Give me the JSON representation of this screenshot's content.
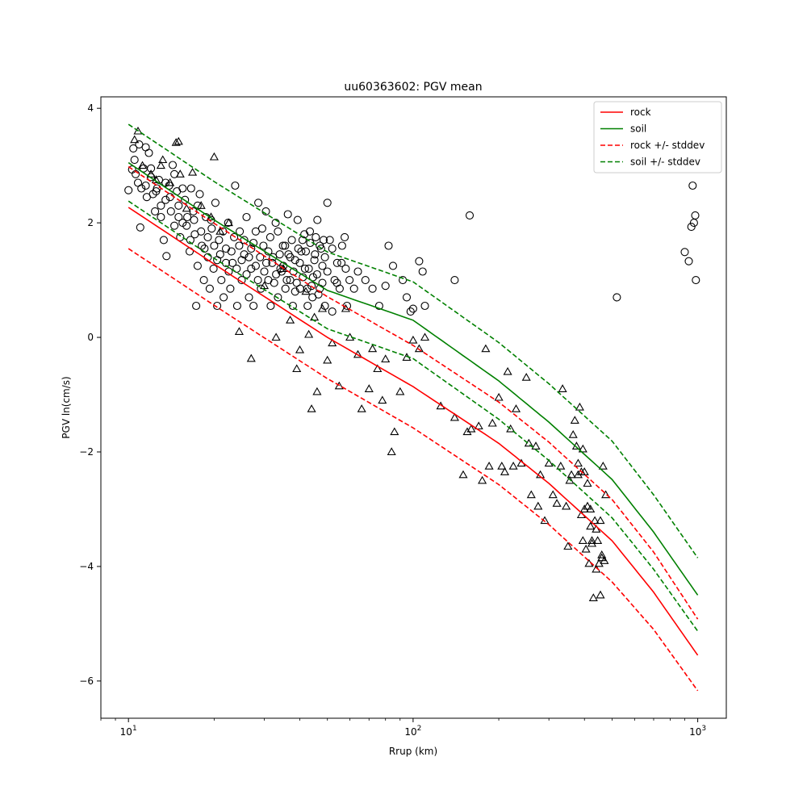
{
  "chart_data": {
    "type": "scatter",
    "title": "uu60363602: PGV mean",
    "xlabel": "Rrup (km)",
    "ylabel": "PGV ln(cm/s)",
    "xscale": "log",
    "xlim": [
      8.0,
      1260.0
    ],
    "ylim": [
      -6.65,
      4.2
    ],
    "grid": false,
    "legend_position": "top-right",
    "x_ticks": [
      {
        "value": 10,
        "base": "10",
        "exp": "1"
      },
      {
        "value": 100,
        "base": "10",
        "exp": "2"
      },
      {
        "value": 1000,
        "base": "10",
        "exp": "3"
      }
    ],
    "y_ticks": [
      {
        "value": 4,
        "label": "4"
      },
      {
        "value": 2,
        "label": "2"
      },
      {
        "value": 0,
        "label": "0"
      },
      {
        "value": -2,
        "label": "−2"
      },
      {
        "value": -4,
        "label": "−4"
      },
      {
        "value": -6,
        "label": "−6"
      }
    ],
    "series": [
      {
        "name": "rock",
        "kind": "line",
        "color": "#ff0000",
        "dashed": false,
        "points": [
          [
            10,
            2.27
          ],
          [
            20,
            1.28
          ],
          [
            50,
            0.0
          ],
          [
            100,
            -0.86
          ],
          [
            200,
            -1.85
          ],
          [
            300,
            -2.55
          ],
          [
            500,
            -3.55
          ],
          [
            700,
            -4.45
          ],
          [
            1000,
            -5.55
          ]
        ]
      },
      {
        "name": "soil",
        "kind": "line",
        "color": "#008000",
        "dashed": false,
        "points": [
          [
            10,
            3.05
          ],
          [
            20,
            2.05
          ],
          [
            50,
            0.82
          ],
          [
            100,
            0.3
          ],
          [
            200,
            -0.76
          ],
          [
            300,
            -1.48
          ],
          [
            500,
            -2.48
          ],
          [
            700,
            -3.4
          ],
          [
            1000,
            -4.5
          ]
        ]
      },
      {
        "name": "rock +/- stddev",
        "kind": "line",
        "color": "#ff0000",
        "dashed": true,
        "legend": true,
        "points": [
          [
            10,
            1.55
          ],
          [
            20,
            0.56
          ],
          [
            50,
            -0.72
          ],
          [
            100,
            -1.58
          ],
          [
            200,
            -2.57
          ],
          [
            300,
            -3.27
          ],
          [
            500,
            -4.27
          ],
          [
            700,
            -5.1
          ],
          [
            1000,
            -6.17
          ]
        ]
      },
      {
        "name": "",
        "kind": "line",
        "color": "#ff0000",
        "dashed": true,
        "legend": false,
        "points": [
          [
            10,
            2.98
          ],
          [
            20,
            1.99
          ],
          [
            50,
            0.71
          ],
          [
            100,
            -0.14
          ],
          [
            200,
            -1.13
          ],
          [
            300,
            -1.83
          ],
          [
            500,
            -2.83
          ],
          [
            700,
            -3.75
          ],
          [
            1000,
            -4.92
          ]
        ]
      },
      {
        "name": "soil +/- stddev",
        "kind": "line",
        "color": "#008000",
        "dashed": true,
        "legend": true,
        "points": [
          [
            10,
            2.38
          ],
          [
            20,
            1.38
          ],
          [
            50,
            0.15
          ],
          [
            100,
            -0.37
          ],
          [
            200,
            -1.43
          ],
          [
            300,
            -2.15
          ],
          [
            500,
            -3.15
          ],
          [
            700,
            -4.05
          ],
          [
            1000,
            -5.13
          ]
        ]
      },
      {
        "name": "",
        "kind": "line",
        "color": "#008000",
        "dashed": true,
        "legend": false,
        "points": [
          [
            10,
            3.72
          ],
          [
            20,
            2.72
          ],
          [
            50,
            1.49
          ],
          [
            100,
            0.97
          ],
          [
            200,
            -0.09
          ],
          [
            300,
            -0.81
          ],
          [
            500,
            -1.81
          ],
          [
            700,
            -2.75
          ],
          [
            1000,
            -3.85
          ]
        ]
      }
    ],
    "circles": [
      [
        10.0,
        2.57
      ],
      [
        10.3,
        2.93
      ],
      [
        10.4,
        3.3
      ],
      [
        10.5,
        3.1
      ],
      [
        10.6,
        2.85
      ],
      [
        10.8,
        2.7
      ],
      [
        10.9,
        3.37
      ],
      [
        11.0,
        1.92
      ],
      [
        11.1,
        2.6
      ],
      [
        11.3,
        2.95
      ],
      [
        11.5,
        3.32
      ],
      [
        11.6,
        2.45
      ],
      [
        11.8,
        3.22
      ],
      [
        12.0,
        2.8
      ],
      [
        12.2,
        2.5
      ],
      [
        12.4,
        2.2
      ],
      [
        12.6,
        2.6
      ],
      [
        12.8,
        2.75
      ],
      [
        13.0,
        2.1
      ],
      [
        13.3,
        1.7
      ],
      [
        13.5,
        2.4
      ],
      [
        13.6,
        1.42
      ],
      [
        13.9,
        2.65
      ],
      [
        14.1,
        2.2
      ],
      [
        14.3,
        3.01
      ],
      [
        14.5,
        1.95
      ],
      [
        14.8,
        2.55
      ],
      [
        15.0,
        2.3
      ],
      [
        15.2,
        1.75
      ],
      [
        15.5,
        2.0
      ],
      [
        15.8,
        2.4
      ],
      [
        16.1,
        2.1
      ],
      [
        16.4,
        1.5
      ],
      [
        16.6,
        2.6
      ],
      [
        16.9,
        2.2
      ],
      [
        17.1,
        1.8
      ],
      [
        17.3,
        0.55
      ],
      [
        17.5,
        1.25
      ],
      [
        17.8,
        2.5
      ],
      [
        18.1,
        1.6
      ],
      [
        18.4,
        1.0
      ],
      [
        18.7,
        2.1
      ],
      [
        19.0,
        1.4
      ],
      [
        19.3,
        0.85
      ],
      [
        19.6,
        1.9
      ],
      [
        19.9,
        1.2
      ],
      [
        20.2,
        2.35
      ],
      [
        20.5,
        0.55
      ],
      [
        20.8,
        1.7
      ],
      [
        21.2,
        1.0
      ],
      [
        21.6,
        0.7
      ],
      [
        22.0,
        1.55
      ],
      [
        22.4,
        2.0
      ],
      [
        22.8,
        0.85
      ],
      [
        23.2,
        1.3
      ],
      [
        23.7,
        2.65
      ],
      [
        24.1,
        0.55
      ],
      [
        24.6,
        1.85
      ],
      [
        25.0,
        1.0
      ],
      [
        25.5,
        1.45
      ],
      [
        26.0,
        2.1
      ],
      [
        26.5,
        0.7
      ],
      [
        27.0,
        1.2
      ],
      [
        27.5,
        0.55
      ],
      [
        28.0,
        1.85
      ],
      [
        28.6,
        2.35
      ],
      [
        29.2,
        0.85
      ],
      [
        29.8,
        1.6
      ],
      [
        30.4,
        2.2
      ],
      [
        31.0,
        1.0
      ],
      [
        31.6,
        0.55
      ],
      [
        32.2,
        1.4
      ],
      [
        32.9,
        2.0
      ],
      [
        33.5,
        0.7
      ],
      [
        34.2,
        1.2
      ],
      [
        34.9,
        1.6
      ],
      [
        35.6,
        0.85
      ],
      [
        36.3,
        2.15
      ],
      [
        37.0,
        1.0
      ],
      [
        37.8,
        0.55
      ],
      [
        38.5,
        1.35
      ],
      [
        39.3,
        2.05
      ],
      [
        40.1,
        0.85
      ],
      [
        40.9,
        1.7
      ],
      [
        41.7,
        1.2
      ],
      [
        42.6,
        0.55
      ],
      [
        43.4,
        1.85
      ],
      [
        44.3,
        0.7
      ],
      [
        45.2,
        1.45
      ],
      [
        46.1,
        2.05
      ],
      [
        47.0,
        0.85
      ],
      [
        48.0,
        1.25
      ],
      [
        49.0,
        0.55
      ],
      [
        50.0,
        2.35
      ],
      [
        51.0,
        1.7
      ],
      [
        52.0,
        0.45
      ],
      [
        53.0,
        1.0
      ],
      [
        54.1,
        1.3
      ],
      [
        55.2,
        0.85
      ],
      [
        56.3,
        1.6
      ],
      [
        57.5,
        1.75
      ],
      [
        58.6,
        0.55
      ],
      [
        59.8,
        1.0
      ],
      [
        62.0,
        0.85
      ],
      [
        64.0,
        1.15
      ],
      [
        68.0,
        1.0
      ],
      [
        72.0,
        0.85
      ],
      [
        76.0,
        0.55
      ],
      [
        80.0,
        0.9
      ],
      [
        82.0,
        1.6
      ],
      [
        85.0,
        1.25
      ],
      [
        92.0,
        1.0
      ],
      [
        95.0,
        0.7
      ],
      [
        98.0,
        0.45
      ],
      [
        100.0,
        0.5
      ],
      [
        105.0,
        1.33
      ],
      [
        108.0,
        1.15
      ],
      [
        110.0,
        0.55
      ],
      [
        140.0,
        1.0
      ],
      [
        158.0,
        2.13
      ],
      [
        520.0,
        0.7
      ],
      [
        900.0,
        1.49
      ],
      [
        930.0,
        1.33
      ],
      [
        950.0,
        1.93
      ],
      [
        960.0,
        2.65
      ],
      [
        980.0,
        2.13
      ],
      [
        985.0,
        1.0
      ],
      [
        970.0,
        2.0
      ],
      [
        12.0,
        2.95
      ],
      [
        13.0,
        2.3
      ],
      [
        14.0,
        2.45
      ],
      [
        15.0,
        2.1
      ],
      [
        16.0,
        1.95
      ],
      [
        17.0,
        2.05
      ],
      [
        18.0,
        1.85
      ],
      [
        19.0,
        1.75
      ],
      [
        20.0,
        1.6
      ],
      [
        21.0,
        1.45
      ],
      [
        22.0,
        1.3
      ],
      [
        23.0,
        1.5
      ],
      [
        24.0,
        1.2
      ],
      [
        25.0,
        1.35
      ],
      [
        26.0,
        1.1
      ],
      [
        27.0,
        1.55
      ],
      [
        28.0,
        1.25
      ],
      [
        29.0,
        1.4
      ],
      [
        30.0,
        1.15
      ],
      [
        31.0,
        1.5
      ],
      [
        32.0,
        1.3
      ],
      [
        33.0,
        1.1
      ],
      [
        34.0,
        1.45
      ],
      [
        35.0,
        1.25
      ],
      [
        36.0,
        1.0
      ],
      [
        37.0,
        1.4
      ],
      [
        38.0,
        1.15
      ],
      [
        39.0,
        0.95
      ],
      [
        40.0,
        1.3
      ],
      [
        41.0,
        1.05
      ],
      [
        42.0,
        1.5
      ],
      [
        43.0,
        1.2
      ],
      [
        44.0,
        0.9
      ],
      [
        45.0,
        1.35
      ],
      [
        46.0,
        1.1
      ],
      [
        47.0,
        1.6
      ],
      [
        48.0,
        0.95
      ],
      [
        49.0,
        1.4
      ],
      [
        50.0,
        1.15
      ],
      [
        52.0,
        1.55
      ],
      [
        54.0,
        0.95
      ],
      [
        56.0,
        1.3
      ],
      [
        58.0,
        1.2
      ],
      [
        16.5,
        1.7
      ],
      [
        18.5,
        1.55
      ],
      [
        20.5,
        1.35
      ],
      [
        22.5,
        1.15
      ],
      [
        24.5,
        1.6
      ],
      [
        26.5,
        1.4
      ],
      [
        28.5,
        1.0
      ],
      [
        30.5,
        1.3
      ],
      [
        32.5,
        0.95
      ],
      [
        34.5,
        1.15
      ],
      [
        36.5,
        1.45
      ],
      [
        38.5,
        0.8
      ],
      [
        40.5,
        1.5
      ],
      [
        42.5,
        0.85
      ],
      [
        44.5,
        1.05
      ],
      [
        46.5,
        0.75
      ],
      [
        48.5,
        1.7
      ],
      [
        15.5,
        2.6
      ],
      [
        17.5,
        2.3
      ],
      [
        19.5,
        2.05
      ],
      [
        21.5,
        1.85
      ],
      [
        23.5,
        1.75
      ],
      [
        25.5,
        1.7
      ],
      [
        27.5,
        1.65
      ],
      [
        29.5,
        1.9
      ],
      [
        31.5,
        1.75
      ],
      [
        33.5,
        1.85
      ],
      [
        35.5,
        1.6
      ],
      [
        37.5,
        1.7
      ],
      [
        39.5,
        1.55
      ],
      [
        41.5,
        1.8
      ],
      [
        43.5,
        1.65
      ],
      [
        45.5,
        1.75
      ],
      [
        47.5,
        1.55
      ],
      [
        13.5,
        2.7
      ],
      [
        14.5,
        2.85
      ],
      [
        11.5,
        2.65
      ],
      [
        12.5,
        2.55
      ]
    ],
    "triangles": [
      [
        10.5,
        3.45
      ],
      [
        10.8,
        3.6
      ],
      [
        11.2,
        3.0
      ],
      [
        12.0,
        2.85
      ],
      [
        12.5,
        2.75
      ],
      [
        13.0,
        3.0
      ],
      [
        13.2,
        3.1
      ],
      [
        14.0,
        2.7
      ],
      [
        14.7,
        3.4
      ],
      [
        15.0,
        3.42
      ],
      [
        15.2,
        2.85
      ],
      [
        16.0,
        2.25
      ],
      [
        16.8,
        2.88
      ],
      [
        18.0,
        2.3
      ],
      [
        19.5,
        2.1
      ],
      [
        20.0,
        3.15
      ],
      [
        21.0,
        1.85
      ],
      [
        22.5,
        2.0
      ],
      [
        24.5,
        0.1
      ],
      [
        27.0,
        -0.37
      ],
      [
        30.0,
        0.9
      ],
      [
        33.0,
        0.0
      ],
      [
        35.0,
        1.2
      ],
      [
        37.0,
        0.3
      ],
      [
        39.0,
        -0.55
      ],
      [
        40.0,
        -0.22
      ],
      [
        42.0,
        0.8
      ],
      [
        43.0,
        0.05
      ],
      [
        44.0,
        -1.25
      ],
      [
        45.0,
        0.35
      ],
      [
        46.0,
        -0.95
      ],
      [
        48.0,
        0.5
      ],
      [
        50.0,
        -0.4
      ],
      [
        52.0,
        -0.1
      ],
      [
        55.0,
        -0.85
      ],
      [
        58.0,
        0.5
      ],
      [
        60.0,
        0.0
      ],
      [
        64.0,
        -0.3
      ],
      [
        66.0,
        -1.25
      ],
      [
        70.0,
        -0.9
      ],
      [
        72.0,
        -0.2
      ],
      [
        75.0,
        -0.55
      ],
      [
        78.0,
        -1.1
      ],
      [
        80.0,
        -0.38
      ],
      [
        84.0,
        -2.0
      ],
      [
        86.0,
        -1.65
      ],
      [
        90.0,
        -0.95
      ],
      [
        95.0,
        -0.35
      ],
      [
        100.0,
        -0.05
      ],
      [
        105.0,
        -0.2
      ],
      [
        110.0,
        0.0
      ],
      [
        125.0,
        -1.2
      ],
      [
        140.0,
        -1.4
      ],
      [
        150.0,
        -2.4
      ],
      [
        155.0,
        -1.65
      ],
      [
        160.0,
        -1.6
      ],
      [
        170.0,
        -1.55
      ],
      [
        175.0,
        -2.5
      ],
      [
        180.0,
        -0.2
      ],
      [
        185.0,
        -2.25
      ],
      [
        190.0,
        -1.5
      ],
      [
        200.0,
        -1.05
      ],
      [
        205.0,
        -2.25
      ],
      [
        210.0,
        -2.35
      ],
      [
        215.0,
        -0.6
      ],
      [
        220.0,
        -1.6
      ],
      [
        225.0,
        -2.25
      ],
      [
        230.0,
        -1.25
      ],
      [
        240.0,
        -2.2
      ],
      [
        250.0,
        -0.7
      ],
      [
        255.0,
        -1.85
      ],
      [
        260.0,
        -2.75
      ],
      [
        270.0,
        -1.9
      ],
      [
        275.0,
        -2.95
      ],
      [
        280.0,
        -2.4
      ],
      [
        290.0,
        -3.2
      ],
      [
        300.0,
        -2.2
      ],
      [
        310.0,
        -2.75
      ],
      [
        320.0,
        -2.9
      ],
      [
        330.0,
        -2.25
      ],
      [
        335.0,
        -0.9
      ],
      [
        345.0,
        -2.95
      ],
      [
        350.0,
        -3.65
      ],
      [
        355.0,
        -2.5
      ],
      [
        360.0,
        -2.4
      ],
      [
        365.0,
        -1.7
      ],
      [
        370.0,
        -1.45
      ],
      [
        375.0,
        -1.9
      ],
      [
        380.0,
        -2.2
      ],
      [
        385.0,
        -1.22
      ],
      [
        390.0,
        -3.1
      ],
      [
        395.0,
        -3.55
      ],
      [
        400.0,
        -3.0
      ],
      [
        405.0,
        -3.7
      ],
      [
        410.0,
        -2.55
      ],
      [
        415.0,
        -3.95
      ],
      [
        420.0,
        -3.3
      ],
      [
        425.0,
        -3.55
      ],
      [
        430.0,
        -4.55
      ],
      [
        435.0,
        -3.2
      ],
      [
        440.0,
        -4.05
      ],
      [
        445.0,
        -3.55
      ],
      [
        450.0,
        -3.95
      ],
      [
        455.0,
        -3.2
      ],
      [
        460.0,
        -3.85
      ],
      [
        465.0,
        -2.25
      ],
      [
        470.0,
        -3.9
      ],
      [
        475.0,
        -2.75
      ],
      [
        395.0,
        -1.95
      ],
      [
        400.0,
        -2.35
      ],
      [
        420.0,
        -3.0
      ],
      [
        425.0,
        -3.6
      ],
      [
        440.0,
        -3.35
      ],
      [
        455.0,
        -4.5
      ],
      [
        460.0,
        -3.8
      ],
      [
        380.0,
        -2.4
      ],
      [
        390.0,
        -2.35
      ],
      [
        410.0,
        -2.95
      ]
    ]
  }
}
